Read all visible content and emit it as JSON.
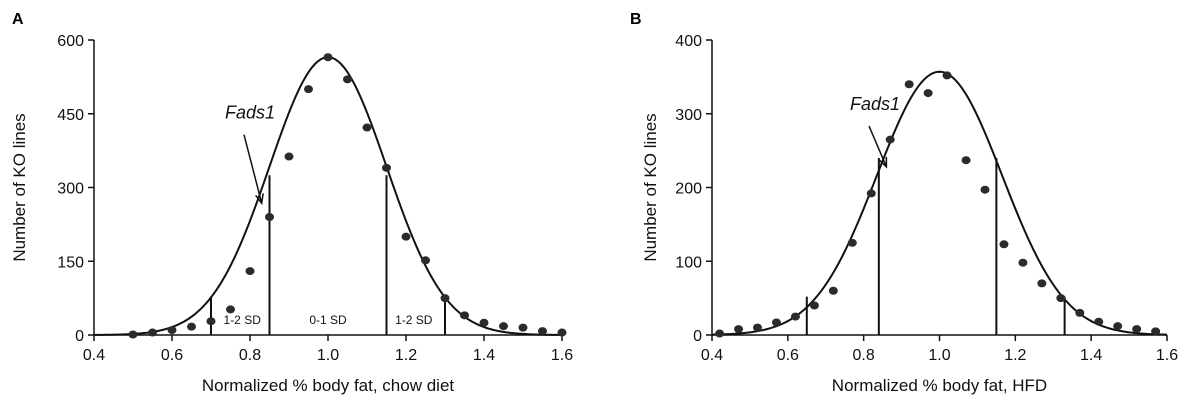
{
  "chart_data": [
    {
      "type": "scatter",
      "panel_label": "A",
      "xlabel": "Normalized % body fat, chow diet",
      "ylabel": "Number of KO lines",
      "xlim": [
        0.4,
        1.6
      ],
      "ylim": [
        0,
        600
      ],
      "xticks": [
        0.4,
        0.6,
        0.8,
        1.0,
        1.2,
        1.4,
        1.6
      ],
      "yticks": [
        0,
        150,
        300,
        450,
        600
      ],
      "xtick_labels": [
        "0.4",
        "0.6",
        "0.8",
        "1.0",
        "1.2",
        "1.4",
        "1.6"
      ],
      "ytick_labels": [
        "0",
        "150",
        "300",
        "450",
        "600"
      ],
      "grid": false,
      "series": [
        {
          "style": "points",
          "x": [
            0.5,
            0.55,
            0.6,
            0.65,
            0.7,
            0.75,
            0.8,
            0.85,
            0.9,
            0.95,
            1.0,
            1.05,
            1.1,
            1.15,
            1.2,
            1.25,
            1.3,
            1.35,
            1.4,
            1.45,
            1.5,
            1.55,
            1.6
          ],
          "y": [
            1,
            5,
            10,
            17,
            28,
            52,
            130,
            240,
            363,
            500,
            565,
            520,
            422,
            340,
            200,
            152,
            75,
            40,
            25,
            18,
            15,
            8,
            5
          ]
        },
        {
          "style": "curve",
          "distribution": "normal",
          "mean": 1.0,
          "sd": 0.15,
          "peak": 565
        }
      ],
      "vertical_lines": [
        {
          "x": 0.7,
          "y": 76
        },
        {
          "x": 0.85,
          "y": 325
        },
        {
          "x": 1.15,
          "y": 325
        },
        {
          "x": 1.3,
          "y": 76
        }
      ],
      "region_labels": [
        {
          "text": "1-2 SD",
          "x": 0.78,
          "y": 22
        },
        {
          "text": "0-1 SD",
          "x": 1.0,
          "y": 22
        },
        {
          "text": "1-2 SD",
          "x": 1.22,
          "y": 22
        }
      ],
      "annotation": {
        "text": "Fads1",
        "x": 0.8,
        "y": 440,
        "arrow_to": [
          0.83,
          268
        ]
      }
    },
    {
      "type": "scatter",
      "panel_label": "B",
      "xlabel": "Normalized % body fat, HFD",
      "ylabel": "Number of KO lines",
      "xlim": [
        0.4,
        1.6
      ],
      "ylim": [
        0,
        400
      ],
      "xticks": [
        0.4,
        0.6,
        0.8,
        1.0,
        1.2,
        1.4,
        1.6
      ],
      "yticks": [
        0,
        100,
        200,
        300,
        400
      ],
      "xtick_labels": [
        "0.4",
        "0.6",
        "0.8",
        "1.0",
        "1.2",
        "1.4",
        "1.6"
      ],
      "ytick_labels": [
        "0",
        "100",
        "200",
        "300",
        "400"
      ],
      "grid": false,
      "series": [
        {
          "style": "points",
          "x": [
            0.42,
            0.47,
            0.52,
            0.57,
            0.62,
            0.67,
            0.72,
            0.77,
            0.82,
            0.87,
            0.92,
            0.97,
            1.02,
            1.07,
            1.12,
            1.17,
            1.22,
            1.27,
            1.32,
            1.37,
            1.42,
            1.47,
            1.52,
            1.57
          ],
          "y": [
            2,
            8,
            10,
            17,
            25,
            40,
            60,
            125,
            192,
            265,
            340,
            328,
            352,
            237,
            197,
            123,
            98,
            70,
            50,
            30,
            18,
            12,
            8,
            5
          ]
        },
        {
          "style": "curve",
          "distribution": "normal",
          "mean": 1.0,
          "sd": 0.165,
          "peak": 357
        }
      ],
      "vertical_lines": [
        {
          "x": 0.65,
          "y": 52
        },
        {
          "x": 0.84,
          "y": 240
        },
        {
          "x": 1.15,
          "y": 240
        },
        {
          "x": 1.33,
          "y": 52
        }
      ],
      "annotation": {
        "text": "Fads1",
        "x": 0.83,
        "y": 305,
        "arrow_to": [
          0.86,
          228
        ]
      }
    }
  ]
}
